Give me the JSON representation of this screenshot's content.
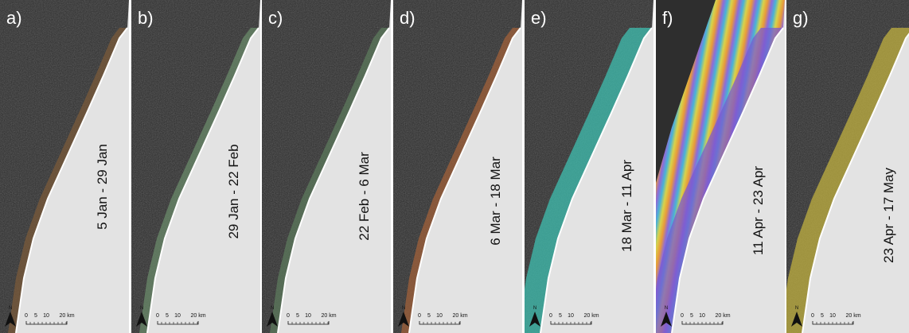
{
  "panels": [
    {
      "label": "a)",
      "dates": "5 Jan - 29 Jan"
    },
    {
      "label": "b)",
      "dates": "29 Jan - 22 Feb"
    },
    {
      "label": "c)",
      "dates": "22 Feb - 6 Mar"
    },
    {
      "label": "d)",
      "dates": "6 Mar - 18 Mar"
    },
    {
      "label": "e)",
      "dates": "18 Mar - 11 Apr"
    },
    {
      "label": "f)",
      "dates": "11 Apr - 23 Apr"
    },
    {
      "label": "g)",
      "dates": "23 Apr - 17 May"
    }
  ],
  "scale_bar": {
    "north": "N",
    "ticks": [
      "0",
      "5",
      "10",
      "20 km"
    ]
  }
}
